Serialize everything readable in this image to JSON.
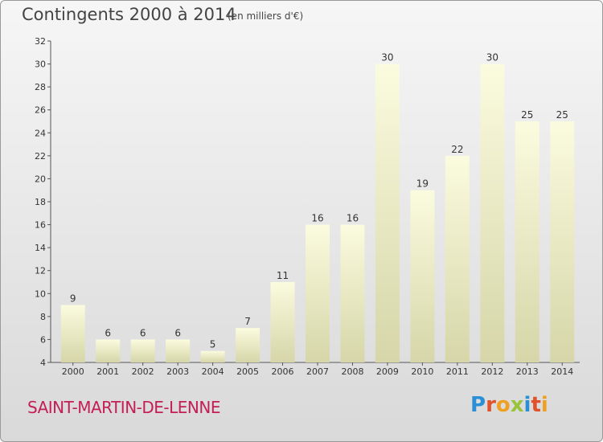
{
  "title": "Contingents 2000 à 2014",
  "subtitle": "(en milliers d'€)",
  "commune": "SAINT-MARTIN-DE-LENNE",
  "logo": {
    "letters": [
      "P",
      "r",
      "o",
      "x",
      "i",
      "t",
      "i"
    ],
    "colors": [
      "#2a8fd4",
      "#e0532a",
      "#f0a020",
      "#9ac33c",
      "#2a8fd4",
      "#e0532a",
      "#f0a020"
    ]
  },
  "colors": {
    "bar_top": "#fbfbdf",
    "bar_bottom": "#d6d6a9",
    "commune": "#c41e56"
  },
  "chart_data": {
    "type": "bar",
    "categories": [
      "2000",
      "2001",
      "2002",
      "2003",
      "2004",
      "2005",
      "2006",
      "2007",
      "2008",
      "2009",
      "2010",
      "2011",
      "2012",
      "2013",
      "2014"
    ],
    "values": [
      9,
      6,
      6,
      6,
      5,
      7,
      11,
      16,
      16,
      30,
      19,
      22,
      30,
      25,
      25
    ],
    "yticks": [
      4,
      6,
      8,
      10,
      12,
      14,
      16,
      18,
      20,
      22,
      24,
      26,
      28,
      30,
      32
    ],
    "ylim": [
      4,
      32
    ],
    "grid": false,
    "data_labels": true
  }
}
